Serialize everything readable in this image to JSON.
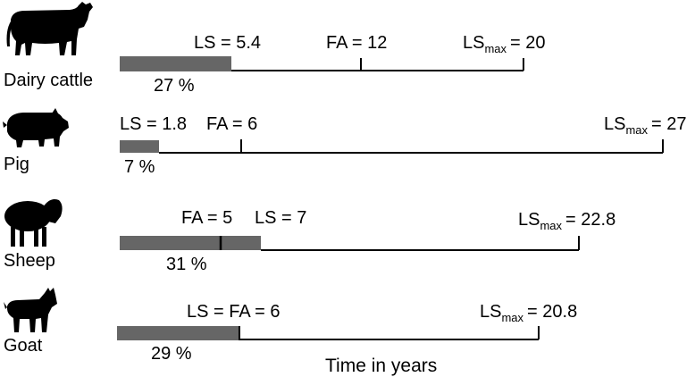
{
  "axis_title": "Time in years",
  "colors": {
    "bar": "#666666",
    "line": "#000000",
    "silhouette": "#000000"
  },
  "rows": [
    {
      "animal": "Dairy cattle",
      "icon": "cow-icon",
      "ls_label": "LS = 5.4",
      "fa_label": "FA = 12",
      "lsmax_prefix": "LS",
      "lsmax_sub": "max",
      "lsmax_value": "= 20",
      "percent": "27 %",
      "ls": 5.4,
      "fa": 12,
      "lsmax": 20
    },
    {
      "animal": "Pig",
      "icon": "pig-icon",
      "ls_label": "LS = 1.8",
      "fa_label": "FA = 6",
      "lsmax_prefix": "LS",
      "lsmax_sub": "max",
      "lsmax_value": "= 27",
      "percent": "7 %",
      "ls": 1.8,
      "fa": 6,
      "lsmax": 27
    },
    {
      "animal": "Sheep",
      "icon": "sheep-icon",
      "ls_label": "LS = 7",
      "fa_label": "FA = 5",
      "lsmax_prefix": "LS",
      "lsmax_sub": "max",
      "lsmax_value": "= 22.8",
      "percent": "31 %",
      "ls": 7,
      "fa": 5,
      "lsmax": 22.8
    },
    {
      "animal": "Goat",
      "icon": "goat-icon",
      "ls_label": "LS = FA = 6",
      "fa_label": "",
      "lsmax_prefix": "LS",
      "lsmax_sub": "max",
      "lsmax_value": "= 20.8",
      "percent": "29 %",
      "ls": 6,
      "fa": 6,
      "lsmax": 20.8
    }
  ]
}
